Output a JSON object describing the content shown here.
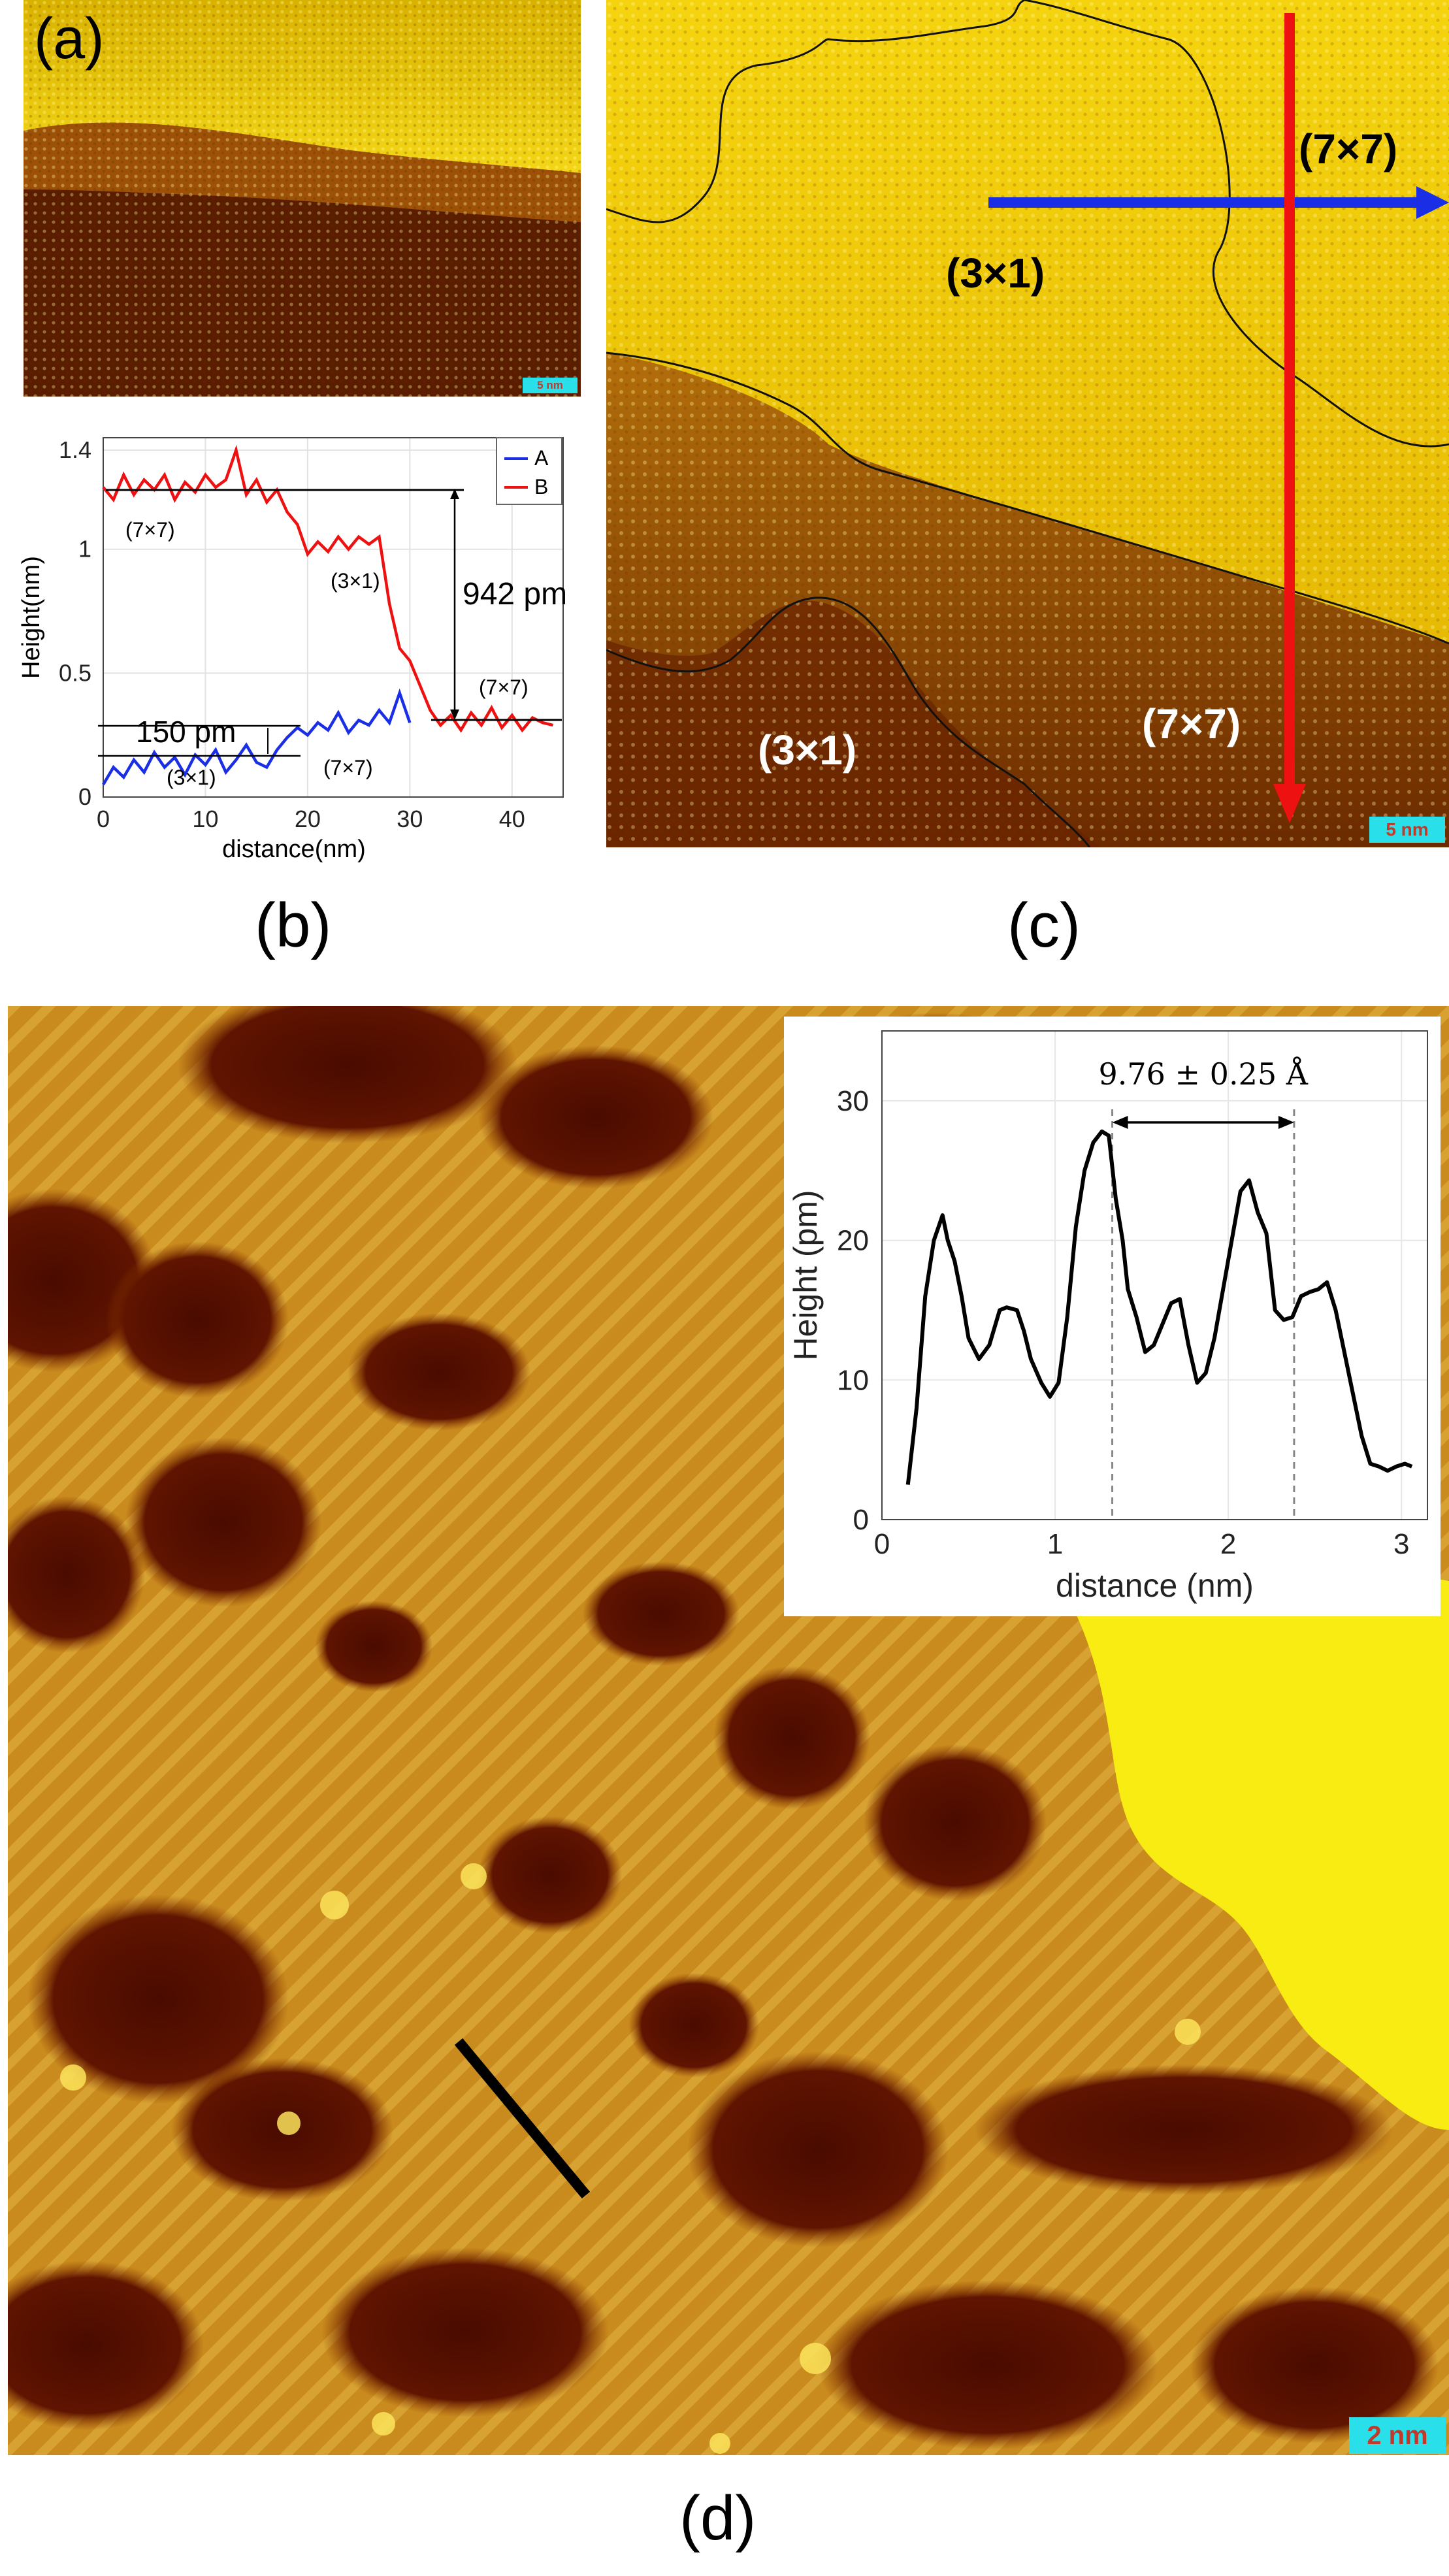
{
  "panels": {
    "a": {
      "letter": "(a)",
      "scale_bar": "5 nm"
    },
    "b": {
      "letter": "(b)",
      "annotations": {
        "step_height": "942 pm",
        "small_step": "150 pm",
        "label_7x7_top": "(7×7)",
        "label_3x1_mid": "(3×1)",
        "label_7x7_right": "(7×7)",
        "label_3x1_low": "(3×1)",
        "label_7x7_low": "(7×7)"
      }
    },
    "c": {
      "letter": "(c)",
      "scale_bar": "5 nm",
      "labels": {
        "top_right_7x7": "(7×7)",
        "upper_3x1": "(3×1)",
        "lower_3x1": "(3×1)",
        "lower_7x7": "(7×7)"
      },
      "arrow_colors": {
        "blue": "#1a2ee6",
        "red": "#ee1111"
      }
    },
    "d": {
      "letter": "(d)",
      "scale_bar": "2 nm",
      "inset_annotation": "9.76 ± 0.25 Å"
    }
  },
  "chart_data": [
    {
      "id": "panel-b-profile",
      "type": "line",
      "title": "",
      "xlabel": "distance(nm)",
      "ylabel": "Height(nm)",
      "xlim": [
        0,
        45
      ],
      "ylim": [
        0,
        1.45
      ],
      "xticks": [
        0,
        10,
        20,
        30,
        40
      ],
      "yticks": [
        0,
        0.5,
        1,
        1.4
      ],
      "ytick_labels": [
        "0",
        "0.5",
        "1",
        "1.4"
      ],
      "legend_position": "top-right",
      "series": [
        {
          "name": "A",
          "color": "#1a2ee6",
          "x": [
            0,
            1,
            2,
            3,
            4,
            5,
            6,
            7,
            8,
            9,
            10,
            11,
            12,
            13,
            14,
            15,
            16,
            17,
            18,
            19,
            20,
            21,
            22,
            23,
            24,
            25,
            26,
            27,
            28,
            29,
            30
          ],
          "y": [
            0.05,
            0.12,
            0.08,
            0.15,
            0.1,
            0.18,
            0.12,
            0.16,
            0.09,
            0.17,
            0.13,
            0.19,
            0.1,
            0.15,
            0.21,
            0.14,
            0.12,
            0.19,
            0.24,
            0.28,
            0.25,
            0.3,
            0.27,
            0.34,
            0.26,
            0.31,
            0.29,
            0.35,
            0.3,
            0.42,
            0.3
          ]
        },
        {
          "name": "B",
          "color": "#ee1111",
          "x": [
            0,
            1,
            2,
            3,
            4,
            5,
            6,
            7,
            8,
            9,
            10,
            11,
            12,
            13,
            14,
            15,
            16,
            17,
            18,
            19,
            20,
            21,
            22,
            23,
            24,
            25,
            26,
            27,
            28,
            29,
            30,
            31,
            32,
            33,
            34,
            35,
            36,
            37,
            38,
            39,
            40,
            41,
            42,
            43,
            44
          ],
          "y": [
            1.25,
            1.2,
            1.3,
            1.22,
            1.28,
            1.24,
            1.3,
            1.2,
            1.27,
            1.23,
            1.3,
            1.25,
            1.28,
            1.4,
            1.22,
            1.28,
            1.19,
            1.24,
            1.15,
            1.1,
            0.98,
            1.03,
            0.99,
            1.05,
            1.0,
            1.05,
            1.02,
            1.05,
            0.78,
            0.6,
            0.55,
            0.45,
            0.35,
            0.29,
            0.33,
            0.27,
            0.34,
            0.29,
            0.36,
            0.28,
            0.33,
            0.27,
            0.32,
            0.3,
            0.29
          ]
        }
      ]
    },
    {
      "id": "panel-d-inset-profile",
      "type": "line",
      "title": "",
      "xlabel": "distance (nm)",
      "ylabel": "Height (pm)",
      "xlim": [
        0,
        3.15
      ],
      "ylim": [
        0,
        35
      ],
      "xticks": [
        0,
        1,
        2,
        3
      ],
      "yticks": [
        0,
        10,
        20,
        30
      ],
      "markers": [
        1.33,
        2.38
      ],
      "series": [
        {
          "name": "profile",
          "color": "#000000",
          "x": [
            0.15,
            0.2,
            0.25,
            0.3,
            0.35,
            0.38,
            0.42,
            0.46,
            0.5,
            0.56,
            0.62,
            0.68,
            0.72,
            0.78,
            0.82,
            0.86,
            0.92,
            0.97,
            1.02,
            1.07,
            1.12,
            1.17,
            1.22,
            1.27,
            1.31,
            1.35,
            1.39,
            1.42,
            1.47,
            1.52,
            1.57,
            1.62,
            1.67,
            1.72,
            1.77,
            1.82,
            1.87,
            1.92,
            1.97,
            2.02,
            2.07,
            2.12,
            2.17,
            2.22,
            2.27,
            2.32,
            2.37,
            2.42,
            2.47,
            2.52,
            2.57,
            2.62,
            2.67,
            2.72,
            2.77,
            2.82,
            2.87,
            2.92,
            2.97,
            3.02,
            3.06
          ],
          "y": [
            2.5,
            8,
            16,
            20,
            21.8,
            20,
            18.5,
            16,
            13,
            11.5,
            12.5,
            15,
            15.2,
            15,
            13.5,
            11.5,
            9.8,
            8.8,
            9.8,
            14.5,
            21,
            25,
            27,
            27.8,
            27.5,
            23,
            20,
            16.5,
            14.5,
            12,
            12.5,
            14,
            15.5,
            15.8,
            12.5,
            9.8,
            10.5,
            13,
            16.5,
            20,
            23.5,
            24.3,
            22,
            20.5,
            15,
            14.3,
            14.5,
            16,
            16.3,
            16.5,
            17,
            15,
            12,
            9,
            6,
            4,
            3.8,
            3.5,
            3.8,
            4,
            3.8
          ]
        }
      ]
    }
  ]
}
